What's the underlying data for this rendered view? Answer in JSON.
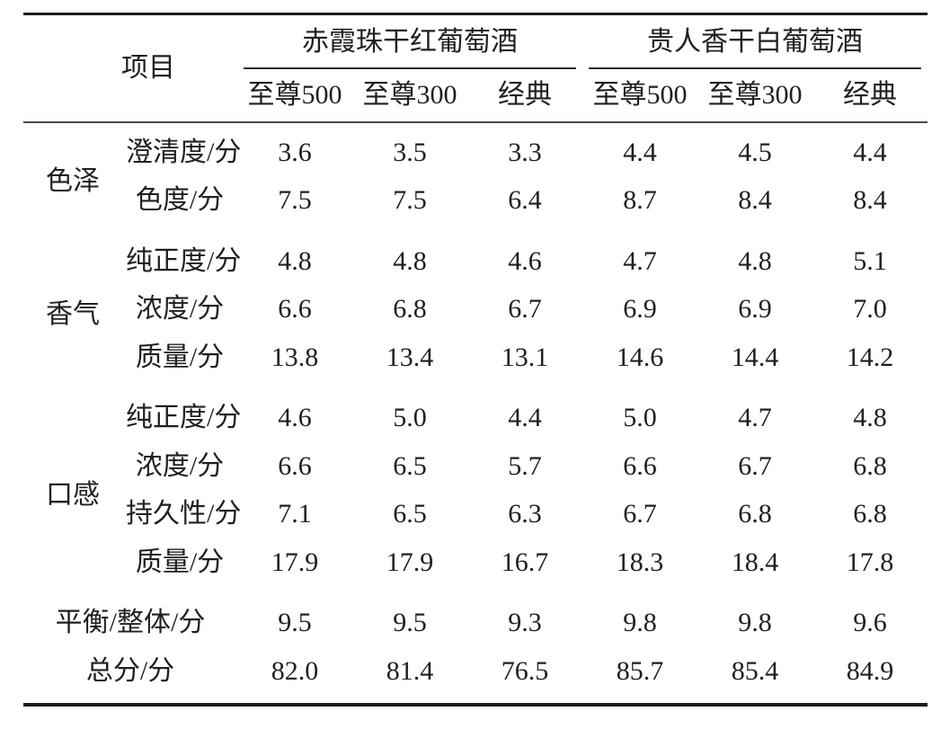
{
  "table": {
    "header": {
      "item_label": "项目",
      "groups": [
        {
          "label": "赤霞珠干红葡萄酒",
          "subcols": [
            "至尊500",
            "至尊300",
            "经典"
          ]
        },
        {
          "label": "贵人香干白葡萄酒",
          "subcols": [
            "至尊500",
            "至尊300",
            "经典"
          ]
        }
      ]
    },
    "sections": [
      {
        "group": "色泽",
        "rows": [
          {
            "item": "澄清度/分",
            "values": [
              "3.6",
              "3.5",
              "3.3",
              "4.4",
              "4.5",
              "4.4"
            ]
          },
          {
            "item": "色度/分",
            "values": [
              "7.5",
              "7.5",
              "6.4",
              "8.7",
              "8.4",
              "8.4"
            ]
          }
        ]
      },
      {
        "group": "香气",
        "rows": [
          {
            "item": "纯正度/分",
            "values": [
              "4.8",
              "4.8",
              "4.6",
              "4.7",
              "4.8",
              "5.1"
            ]
          },
          {
            "item": "浓度/分",
            "values": [
              "6.6",
              "6.8",
              "6.7",
              "6.9",
              "6.9",
              "7.0"
            ]
          },
          {
            "item": "质量/分",
            "values": [
              "13.8",
              "13.4",
              "13.1",
              "14.6",
              "14.4",
              "14.2"
            ]
          }
        ]
      },
      {
        "group": "口感",
        "rows": [
          {
            "item": "纯正度/分",
            "values": [
              "4.6",
              "5.0",
              "4.4",
              "5.0",
              "4.7",
              "4.8"
            ]
          },
          {
            "item": "浓度/分",
            "values": [
              "6.6",
              "6.5",
              "5.7",
              "6.6",
              "6.7",
              "6.8"
            ]
          },
          {
            "item": "持久性/分",
            "values": [
              "7.1",
              "6.5",
              "6.3",
              "6.7",
              "6.8",
              "6.8"
            ]
          },
          {
            "item": "质量/分",
            "values": [
              "17.9",
              "17.9",
              "16.7",
              "18.3",
              "18.4",
              "17.8"
            ]
          }
        ]
      }
    ],
    "summary_rows": [
      {
        "item": "平衡/整体/分",
        "values": [
          "9.5",
          "9.5",
          "9.3",
          "9.8",
          "9.8",
          "9.6"
        ]
      },
      {
        "item": "总分/分",
        "values": [
          "82.0",
          "81.4",
          "76.5",
          "85.7",
          "85.4",
          "84.9"
        ]
      }
    ],
    "colors": {
      "rule_heavy": "#1c1c1c",
      "rule_light": "#4a4a4a",
      "text": "#1f1f1f",
      "background": "#ffffff"
    }
  }
}
